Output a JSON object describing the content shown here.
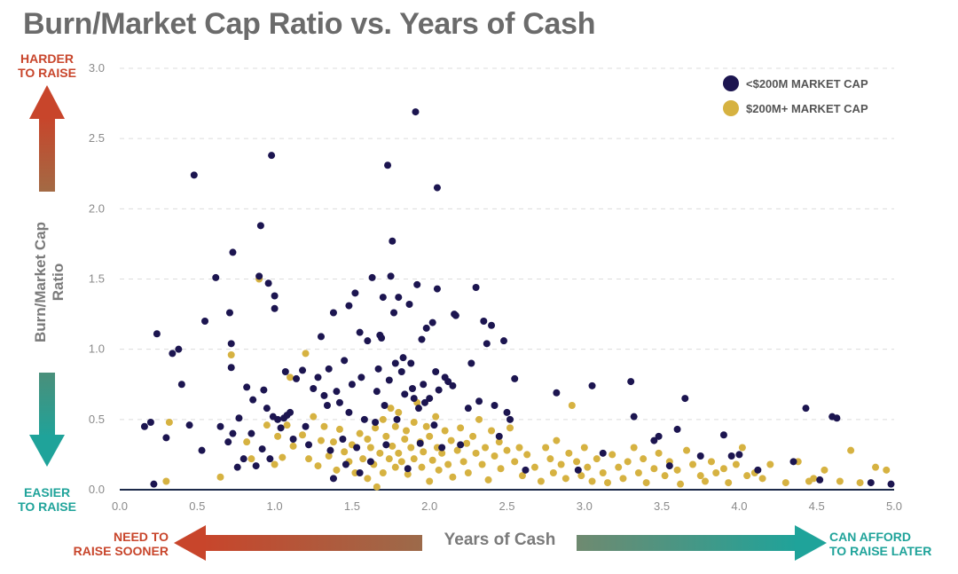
{
  "chart_data": {
    "type": "scatter",
    "title": "Burn/Market Cap Ratio vs. Years of Cash",
    "xlabel": "Years of Cash",
    "ylabel": "Burn/Market Cap Ratio",
    "xlim": [
      0,
      5
    ],
    "ylim": [
      0,
      3
    ],
    "x_ticks": [
      "0.0",
      "0.5",
      "1.0",
      "1.5",
      "2.0",
      "2.5",
      "3.0",
      "3.5",
      "4.0",
      "4.5",
      "5.0"
    ],
    "y_ticks": [
      "0.0",
      "0.5",
      "1.0",
      "1.5",
      "2.0",
      "2.5",
      "3.0"
    ],
    "grid": "horizontal dashed",
    "legend_position": "top-right",
    "annotations": {
      "harder": "HARDER\nTO RAISE",
      "easier": "EASIER\nTO RAISE",
      "need_to": "NEED TO\nRAISE SOONER",
      "can_afford": "CAN AFFORD\nTO RAISE LATER"
    },
    "series": [
      {
        "name": "<$200M MARKET CAP",
        "color": "#1c1550",
        "points": [
          [
            0.16,
            0.45
          ],
          [
            0.2,
            0.48
          ],
          [
            0.22,
            0.04
          ],
          [
            0.24,
            1.11
          ],
          [
            0.3,
            0.37
          ],
          [
            0.34,
            0.97
          ],
          [
            0.38,
            1.0
          ],
          [
            0.4,
            0.75
          ],
          [
            0.45,
            0.46
          ],
          [
            0.48,
            2.24
          ],
          [
            0.53,
            0.28
          ],
          [
            0.55,
            1.2
          ],
          [
            0.62,
            1.51
          ],
          [
            0.65,
            0.45
          ],
          [
            0.7,
            0.34
          ],
          [
            0.71,
            1.26
          ],
          [
            0.72,
            1.04
          ],
          [
            0.73,
            0.4
          ],
          [
            0.73,
            1.69
          ],
          [
            0.72,
            0.87
          ],
          [
            0.76,
            0.16
          ],
          [
            0.77,
            0.51
          ],
          [
            0.8,
            0.22
          ],
          [
            0.82,
            0.73
          ],
          [
            0.85,
            0.4
          ],
          [
            0.86,
            0.64
          ],
          [
            0.88,
            0.17
          ],
          [
            0.9,
            1.52
          ],
          [
            0.91,
            1.88
          ],
          [
            0.92,
            0.29
          ],
          [
            0.93,
            0.71
          ],
          [
            0.95,
            0.58
          ],
          [
            0.96,
            1.47
          ],
          [
            0.97,
            0.22
          ],
          [
            0.98,
            2.38
          ],
          [
            0.99,
            0.52
          ],
          [
            1.0,
            1.29
          ],
          [
            1.0,
            1.38
          ],
          [
            1.02,
            0.5
          ],
          [
            1.04,
            0.44
          ],
          [
            1.06,
            0.51
          ],
          [
            1.07,
            0.84
          ],
          [
            1.08,
            0.53
          ],
          [
            1.1,
            0.55
          ],
          [
            1.12,
            0.36
          ],
          [
            1.14,
            0.79
          ],
          [
            1.18,
            0.85
          ],
          [
            1.2,
            0.45
          ],
          [
            1.22,
            0.32
          ],
          [
            1.25,
            0.72
          ],
          [
            1.28,
            0.8
          ],
          [
            1.3,
            1.09
          ],
          [
            1.32,
            0.67
          ],
          [
            1.34,
            0.6
          ],
          [
            1.35,
            0.86
          ],
          [
            1.36,
            0.28
          ],
          [
            1.38,
            1.26
          ],
          [
            1.38,
            0.08
          ],
          [
            1.4,
            0.7
          ],
          [
            1.42,
            0.62
          ],
          [
            1.44,
            0.36
          ],
          [
            1.45,
            0.92
          ],
          [
            1.46,
            0.18
          ],
          [
            1.48,
            0.55
          ],
          [
            1.48,
            1.31
          ],
          [
            1.5,
            0.75
          ],
          [
            1.52,
            1.4
          ],
          [
            1.53,
            0.3
          ],
          [
            1.55,
            0.12
          ],
          [
            1.55,
            1.12
          ],
          [
            1.56,
            0.8
          ],
          [
            1.58,
            0.5
          ],
          [
            1.6,
            1.06
          ],
          [
            1.62,
            0.2
          ],
          [
            1.63,
            1.51
          ],
          [
            1.65,
            0.48
          ],
          [
            1.66,
            0.7
          ],
          [
            1.67,
            0.86
          ],
          [
            1.68,
            1.1
          ],
          [
            1.69,
            1.08
          ],
          [
            1.7,
            1.37
          ],
          [
            1.71,
            0.6
          ],
          [
            1.72,
            0.32
          ],
          [
            1.73,
            2.31
          ],
          [
            1.74,
            0.78
          ],
          [
            1.75,
            1.52
          ],
          [
            1.76,
            1.77
          ],
          [
            1.77,
            1.26
          ],
          [
            1.78,
            0.9
          ],
          [
            1.79,
            0.5
          ],
          [
            1.8,
            1.37
          ],
          [
            1.82,
            0.84
          ],
          [
            1.83,
            0.94
          ],
          [
            1.84,
            0.68
          ],
          [
            1.86,
            0.15
          ],
          [
            1.87,
            1.32
          ],
          [
            1.88,
            0.9
          ],
          [
            1.89,
            0.72
          ],
          [
            1.9,
            0.65
          ],
          [
            1.91,
            2.69
          ],
          [
            1.92,
            1.46
          ],
          [
            1.93,
            0.58
          ],
          [
            1.94,
            0.33
          ],
          [
            1.95,
            1.07
          ],
          [
            1.96,
            0.75
          ],
          [
            1.97,
            0.62
          ],
          [
            1.98,
            1.15
          ],
          [
            2.0,
            0.65
          ],
          [
            2.02,
            1.19
          ],
          [
            2.03,
            0.46
          ],
          [
            2.04,
            0.84
          ],
          [
            2.05,
            1.43
          ],
          [
            2.05,
            2.15
          ],
          [
            2.06,
            0.71
          ],
          [
            2.08,
            0.3
          ],
          [
            2.1,
            0.8
          ],
          [
            2.12,
            0.77
          ],
          [
            2.15,
            0.74
          ],
          [
            2.16,
            1.25
          ],
          [
            2.17,
            1.24
          ],
          [
            2.2,
            0.32
          ],
          [
            2.25,
            0.58
          ],
          [
            2.27,
            0.9
          ],
          [
            2.3,
            1.44
          ],
          [
            2.32,
            0.63
          ],
          [
            2.35,
            1.2
          ],
          [
            2.37,
            1.04
          ],
          [
            2.4,
            1.17
          ],
          [
            2.42,
            0.6
          ],
          [
            2.45,
            0.38
          ],
          [
            2.48,
            1.06
          ],
          [
            2.5,
            0.55
          ],
          [
            2.52,
            0.5
          ],
          [
            2.55,
            0.79
          ],
          [
            2.62,
            0.14
          ],
          [
            2.82,
            0.69
          ],
          [
            2.96,
            0.14
          ],
          [
            3.05,
            0.74
          ],
          [
            3.12,
            0.26
          ],
          [
            3.3,
            0.77
          ],
          [
            3.32,
            0.52
          ],
          [
            3.45,
            0.35
          ],
          [
            3.48,
            0.38
          ],
          [
            3.55,
            0.17
          ],
          [
            3.6,
            0.43
          ],
          [
            3.65,
            0.65
          ],
          [
            3.75,
            0.24
          ],
          [
            3.9,
            0.39
          ],
          [
            3.95,
            0.24
          ],
          [
            4.0,
            0.25
          ],
          [
            4.12,
            0.14
          ],
          [
            4.35,
            0.2
          ],
          [
            4.43,
            0.58
          ],
          [
            4.52,
            0.07
          ],
          [
            4.6,
            0.52
          ],
          [
            4.63,
            0.51
          ],
          [
            4.85,
            0.05
          ],
          [
            4.98,
            0.04
          ]
        ]
      },
      {
        "name": "$200M+ MARKET CAP",
        "color": "#d6b241",
        "points": [
          [
            0.3,
            0.06
          ],
          [
            0.32,
            0.48
          ],
          [
            0.65,
            0.09
          ],
          [
            0.72,
            0.96
          ],
          [
            0.82,
            0.34
          ],
          [
            0.85,
            0.22
          ],
          [
            0.9,
            1.5
          ],
          [
            0.95,
            0.46
          ],
          [
            1.0,
            0.18
          ],
          [
            1.02,
            0.38
          ],
          [
            1.05,
            0.23
          ],
          [
            1.08,
            0.46
          ],
          [
            1.1,
            0.8
          ],
          [
            1.12,
            0.31
          ],
          [
            1.18,
            0.39
          ],
          [
            1.2,
            0.97
          ],
          [
            1.22,
            0.22
          ],
          [
            1.25,
            0.52
          ],
          [
            1.28,
            0.17
          ],
          [
            1.3,
            0.35
          ],
          [
            1.32,
            0.45
          ],
          [
            1.35,
            0.24
          ],
          [
            1.38,
            0.34
          ],
          [
            1.4,
            0.14
          ],
          [
            1.42,
            0.43
          ],
          [
            1.45,
            0.27
          ],
          [
            1.48,
            0.2
          ],
          [
            1.5,
            0.32
          ],
          [
            1.52,
            0.12
          ],
          [
            1.55,
            0.4
          ],
          [
            1.57,
            0.22
          ],
          [
            1.6,
            0.08
          ],
          [
            1.6,
            0.36
          ],
          [
            1.62,
            0.3
          ],
          [
            1.64,
            0.18
          ],
          [
            1.65,
            0.44
          ],
          [
            1.66,
            0.02
          ],
          [
            1.68,
            0.26
          ],
          [
            1.7,
            0.5
          ],
          [
            1.7,
            0.12
          ],
          [
            1.72,
            0.38
          ],
          [
            1.74,
            0.22
          ],
          [
            1.75,
            0.58
          ],
          [
            1.76,
            0.31
          ],
          [
            1.78,
            0.45
          ],
          [
            1.78,
            0.16
          ],
          [
            1.8,
            0.55
          ],
          [
            1.8,
            0.26
          ],
          [
            1.82,
            0.2
          ],
          [
            1.84,
            0.36
          ],
          [
            1.85,
            0.42
          ],
          [
            1.86,
            0.11
          ],
          [
            1.88,
            0.3
          ],
          [
            1.9,
            0.48
          ],
          [
            1.9,
            0.22
          ],
          [
            1.92,
            0.62
          ],
          [
            1.94,
            0.34
          ],
          [
            1.95,
            0.16
          ],
          [
            1.96,
            0.27
          ],
          [
            1.98,
            0.45
          ],
          [
            2.0,
            0.06
          ],
          [
            2.0,
            0.38
          ],
          [
            2.02,
            0.21
          ],
          [
            2.04,
            0.52
          ],
          [
            2.05,
            0.3
          ],
          [
            2.06,
            0.14
          ],
          [
            2.08,
            0.26
          ],
          [
            2.1,
            0.42
          ],
          [
            2.12,
            0.18
          ],
          [
            2.14,
            0.35
          ],
          [
            2.15,
            0.09
          ],
          [
            2.18,
            0.28
          ],
          [
            2.2,
            0.44
          ],
          [
            2.22,
            0.2
          ],
          [
            2.24,
            0.33
          ],
          [
            2.25,
            0.12
          ],
          [
            2.28,
            0.38
          ],
          [
            2.3,
            0.26
          ],
          [
            2.32,
            0.5
          ],
          [
            2.34,
            0.18
          ],
          [
            2.36,
            0.3
          ],
          [
            2.38,
            0.07
          ],
          [
            2.4,
            0.42
          ],
          [
            2.42,
            0.24
          ],
          [
            2.45,
            0.34
          ],
          [
            2.46,
            0.15
          ],
          [
            2.5,
            0.28
          ],
          [
            2.52,
            0.44
          ],
          [
            2.55,
            0.2
          ],
          [
            2.58,
            0.3
          ],
          [
            2.6,
            0.1
          ],
          [
            2.63,
            0.25
          ],
          [
            2.68,
            0.16
          ],
          [
            2.72,
            0.06
          ],
          [
            2.75,
            0.3
          ],
          [
            2.78,
            0.22
          ],
          [
            2.8,
            0.12
          ],
          [
            2.82,
            0.35
          ],
          [
            2.85,
            0.18
          ],
          [
            2.88,
            0.08
          ],
          [
            2.9,
            0.26
          ],
          [
            2.92,
            0.6
          ],
          [
            2.95,
            0.2
          ],
          [
            2.98,
            0.1
          ],
          [
            3.0,
            0.3
          ],
          [
            3.02,
            0.16
          ],
          [
            3.05,
            0.06
          ],
          [
            3.08,
            0.22
          ],
          [
            3.12,
            0.12
          ],
          [
            3.15,
            0.05
          ],
          [
            3.18,
            0.25
          ],
          [
            3.22,
            0.16
          ],
          [
            3.25,
            0.08
          ],
          [
            3.28,
            0.2
          ],
          [
            3.32,
            0.3
          ],
          [
            3.35,
            0.12
          ],
          [
            3.38,
            0.22
          ],
          [
            3.4,
            0.05
          ],
          [
            3.45,
            0.15
          ],
          [
            3.48,
            0.26
          ],
          [
            3.52,
            0.1
          ],
          [
            3.55,
            0.2
          ],
          [
            3.6,
            0.14
          ],
          [
            3.62,
            0.04
          ],
          [
            3.66,
            0.28
          ],
          [
            3.7,
            0.18
          ],
          [
            3.75,
            0.1
          ],
          [
            3.78,
            0.06
          ],
          [
            3.82,
            0.2
          ],
          [
            3.85,
            0.12
          ],
          [
            3.9,
            0.15
          ],
          [
            3.93,
            0.05
          ],
          [
            3.98,
            0.18
          ],
          [
            4.02,
            0.3
          ],
          [
            4.05,
            0.1
          ],
          [
            4.1,
            0.12
          ],
          [
            4.15,
            0.08
          ],
          [
            4.2,
            0.18
          ],
          [
            4.3,
            0.05
          ],
          [
            4.38,
            0.2
          ],
          [
            4.45,
            0.06
          ],
          [
            4.48,
            0.08
          ],
          [
            4.55,
            0.14
          ],
          [
            4.65,
            0.06
          ],
          [
            4.72,
            0.28
          ],
          [
            4.78,
            0.05
          ],
          [
            4.88,
            0.16
          ],
          [
            4.95,
            0.14
          ]
        ]
      }
    ]
  }
}
